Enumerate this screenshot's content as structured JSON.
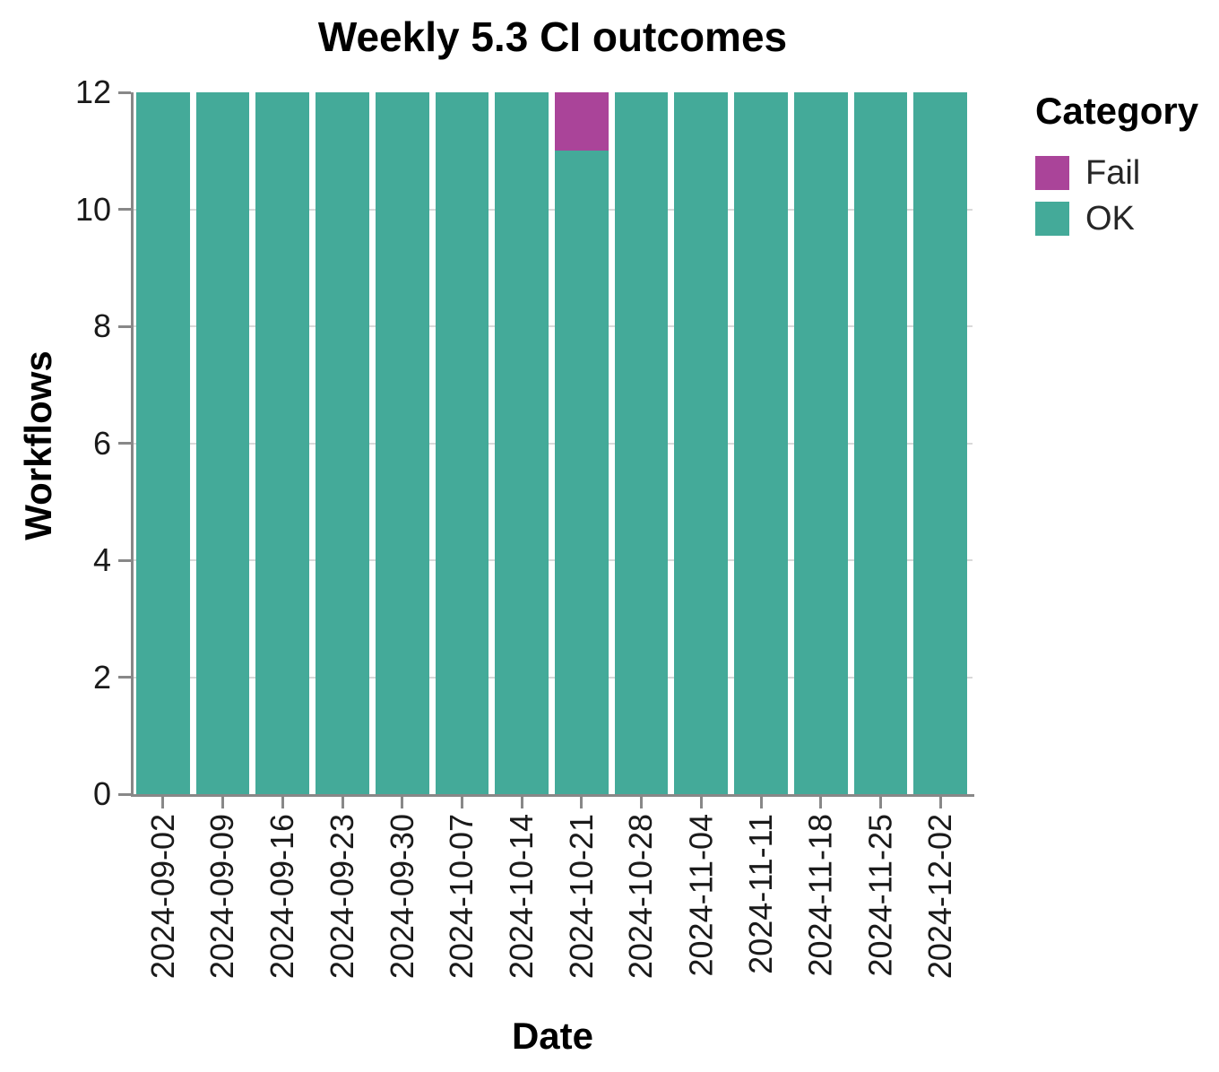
{
  "title": "Weekly 5.3 CI outcomes",
  "colors": {
    "fail": "#AA4499",
    "ok": "#44AA99",
    "axis": "#888888",
    "grid": "#d9d9d9",
    "text": "#000000",
    "tick_text": "#1a1a1a",
    "background": "#ffffff"
  },
  "legend": {
    "title": "Category",
    "entries": [
      {
        "label": "Fail",
        "color": "#AA4499"
      },
      {
        "label": "OK",
        "color": "#44AA99"
      }
    ]
  },
  "chart_data": {
    "type": "bar",
    "stacked": true,
    "title": "Weekly 5.3 CI outcomes",
    "xlabel": "Date",
    "ylabel": "Workflows",
    "ylim": [
      0,
      12
    ],
    "yticks": [
      0,
      2,
      4,
      6,
      8,
      10,
      12
    ],
    "grid": true,
    "legend_position": "right",
    "categories": [
      "2024-09-02",
      "2024-09-09",
      "2024-09-16",
      "2024-09-23",
      "2024-09-30",
      "2024-10-07",
      "2024-10-14",
      "2024-10-21",
      "2024-10-28",
      "2024-11-04",
      "2024-11-11",
      "2024-11-18",
      "2024-11-25",
      "2024-12-02"
    ],
    "series": [
      {
        "name": "OK",
        "color": "#44AA99",
        "values": [
          12,
          12,
          12,
          12,
          12,
          12,
          12,
          11,
          12,
          12,
          12,
          12,
          12,
          12
        ]
      },
      {
        "name": "Fail",
        "color": "#AA4499",
        "values": [
          0,
          0,
          0,
          0,
          0,
          0,
          0,
          1,
          0,
          0,
          0,
          0,
          0,
          0
        ]
      }
    ]
  }
}
